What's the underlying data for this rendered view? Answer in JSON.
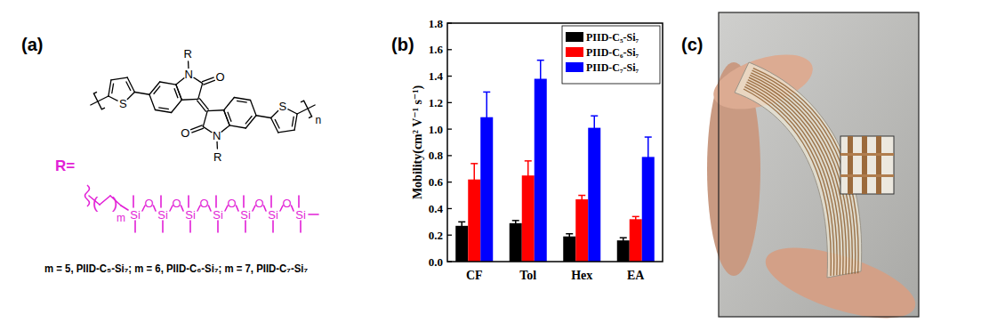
{
  "panel_labels": [
    "(a)",
    "(b)",
    "(c)"
  ],
  "structure": {
    "substituent": "R",
    "atoms": {
      "N": "N",
      "O": "O",
      "S": "S"
    },
    "repeat": "n"
  },
  "side_chain": {
    "label": "R=",
    "silicon": "Si",
    "oxygen": "O",
    "repeat": "m"
  },
  "caption": "m = 5, PIID-C₅-Si₇;  m = 6, PIID-C₆-Si₇;  m = 7, PIID-C₇-Si₇",
  "chart_data": {
    "type": "bar",
    "y_label": "Mobility(cm² V⁻¹ s⁻¹)",
    "categories": [
      "CF",
      "Tol",
      "Hex",
      "EA"
    ],
    "series": [
      {
        "name": "PIID-C₅-Si₇",
        "color": "#000000",
        "values": [
          0.27,
          0.29,
          0.19,
          0.16
        ],
        "errors": [
          0.03,
          0.02,
          0.02,
          0.02
        ]
      },
      {
        "name": "PIID-C₆-Si₇",
        "color": "#ff0000",
        "values": [
          0.62,
          0.65,
          0.47,
          0.32
        ],
        "errors": [
          0.12,
          0.11,
          0.03,
          0.02
        ]
      },
      {
        "name": "PIID-C₇-Si₇",
        "color": "#0000ff",
        "values": [
          1.09,
          1.38,
          1.01,
          0.79
        ],
        "errors": [
          0.19,
          0.14,
          0.09,
          0.15
        ]
      }
    ],
    "ylim": [
      0,
      1.8
    ],
    "yticks": [
      {
        "value": 0,
        "label": "0.0"
      },
      0.2,
      0.4,
      0.6,
      0.8,
      {
        "value": 1,
        "label": "1.0"
      },
      1.2,
      1.4,
      1.6,
      1.8
    ],
    "legend": "top-right"
  }
}
